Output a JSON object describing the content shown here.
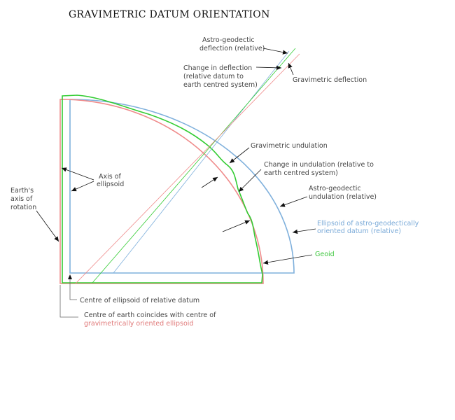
{
  "title": "GRAVIMETRIC DATUM ORIENTATION",
  "labels": {
    "astro_geodetic_deflection": [
      "Astro-geodectic",
      "deflection (relative)"
    ],
    "change_in_deflection": [
      "Change in deflection",
      "(relative datum to",
      "earth centred system)"
    ],
    "gravimetric_deflection": [
      "Gravimetric deflection"
    ],
    "gravimetric_undulation": [
      "Gravimetric undulation"
    ],
    "change_in_undulation": [
      "Change in undulation (relative to",
      "earth centred system)"
    ],
    "astro_geodetic_undulation": [
      "Astro-geodectic",
      "undulation (relative)"
    ],
    "ellipsoid_astro_geodetic": [
      "Ellipsoid of astro-geodectically",
      "oriented datum (relative)"
    ],
    "geoid": [
      "Geoid"
    ],
    "axis_of_ellipsoid": [
      "Axis of",
      "ellipsoid"
    ],
    "earths_axis": [
      "Earth's",
      "axis of",
      "rotation"
    ],
    "centre_relative": [
      "Centre of ellipsoid of relative datum"
    ],
    "centre_earth": [
      "Centre of earth coincides with centre of"
    ],
    "centre_earth_highlight": [
      "gravimetrically oriented ellipsoid"
    ]
  },
  "colors": {
    "astro_geodetic_ellipsoid": "#7fb0dc",
    "gravimetric_ellipsoid": "#ef8a8a",
    "geoid": "#33cc33",
    "annotation": "#444444"
  }
}
